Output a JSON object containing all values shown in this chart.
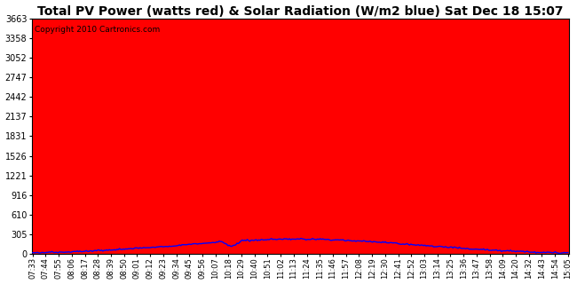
{
  "title": "Total PV Power (watts red) & Solar Radiation (W/m2 blue) Sat Dec 18 15:07",
  "copyright": "Copyright 2010 Cartronics.com",
  "yticks": [
    0.0,
    305.2,
    610.5,
    915.7,
    1220.9,
    1526.2,
    1831.4,
    2136.7,
    2441.9,
    2747.1,
    3052.4,
    3357.6,
    3662.8
  ],
  "ymax": 3662.8,
  "background_color": "#ffffff",
  "plot_bg_color": "#ffffff",
  "bar_color": "#ff0000",
  "line_color": "#0000ff",
  "grid_color": "#999999",
  "title_fontsize": 10,
  "xtick_labels": [
    "07:33",
    "07:44",
    "07:55",
    "08:06",
    "08:17",
    "08:28",
    "08:39",
    "08:50",
    "09:01",
    "09:12",
    "09:23",
    "09:34",
    "09:45",
    "09:56",
    "10:07",
    "10:18",
    "10:29",
    "10:40",
    "10:51",
    "11:02",
    "11:13",
    "11:24",
    "11:35",
    "11:46",
    "11:57",
    "12:08",
    "12:19",
    "12:30",
    "12:41",
    "12:52",
    "13:03",
    "13:14",
    "13:25",
    "13:36",
    "13:47",
    "13:58",
    "14:09",
    "14:20",
    "14:32",
    "14:43",
    "14:54",
    "15:05"
  ]
}
